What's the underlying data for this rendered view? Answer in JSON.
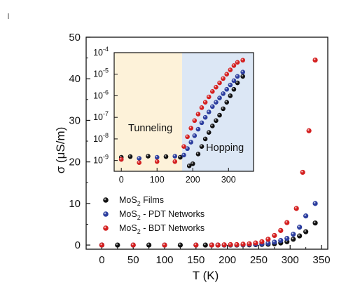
{
  "chart_data": [
    {
      "type": "scatter",
      "xlabel": "T (K)",
      "ylabel": "σ (μS/m)",
      "xlim": [
        -25,
        360
      ],
      "ylim": [
        -1,
        50
      ],
      "xticks": [
        0,
        50,
        100,
        150,
        200,
        250,
        300,
        350
      ],
      "yticks": [
        0,
        10,
        20,
        30,
        40,
        50
      ],
      "legend_position": "lower-left",
      "series": [
        {
          "name": "MoS2 Films",
          "name_base": "MoS",
          "name_sub": "2",
          "name_rest": " Films",
          "color": "#111111",
          "x": [
            0,
            25,
            75,
            125,
            165,
            175,
            185,
            195,
            205,
            215,
            225,
            235,
            245,
            255,
            265,
            275,
            285,
            295,
            305,
            315,
            325,
            340
          ],
          "y": [
            0,
            0,
            0,
            0,
            0,
            0,
            0,
            0,
            0,
            0,
            0.05,
            0.05,
            0.1,
            0.15,
            0.2,
            0.3,
            0.5,
            0.8,
            1.4,
            2.2,
            3.2,
            5.3
          ]
        },
        {
          "name": "MoS2 - PDT Networks",
          "name_base": "MoS",
          "name_sub": "2",
          "name_rest": " - PDT Networks",
          "color": "#2b3d9e",
          "x": [
            0,
            50,
            100,
            150,
            175,
            185,
            195,
            205,
            215,
            225,
            235,
            245,
            255,
            265,
            275,
            285,
            295,
            305,
            315,
            325,
            340
          ],
          "y": [
            0,
            0,
            0,
            0,
            0,
            0,
            0,
            0.05,
            0.05,
            0.1,
            0.15,
            0.2,
            0.3,
            0.45,
            0.7,
            1.1,
            1.6,
            2.6,
            4.3,
            7.0,
            10.0
          ]
        },
        {
          "name": "MoS2 - BDT Networks",
          "name_base": "MoS",
          "name_sub": "2",
          "name_rest": " - BDT Networks",
          "color": "#d41f1f",
          "x": [
            0,
            50,
            100,
            150,
            175,
            185,
            195,
            205,
            215,
            225,
            235,
            245,
            255,
            265,
            275,
            285,
            295,
            310,
            320,
            330,
            340
          ],
          "y": [
            0,
            0,
            0,
            0,
            0,
            0,
            0.05,
            0.1,
            0.1,
            0.2,
            0.3,
            0.5,
            0.8,
            1.4,
            2.3,
            3.5,
            5.4,
            8.8,
            17.5,
            27.5,
            44.5
          ]
        }
      ]
    },
    {
      "type": "scatter",
      "role": "inset",
      "log_y": true,
      "xlim": [
        -20,
        370
      ],
      "ylim_exponent": [
        -9.5,
        -4
      ],
      "xticks": [
        0,
        100,
        200,
        300
      ],
      "ytick_exponents": [
        -9,
        -8,
        -7,
        -6,
        -5,
        -4
      ],
      "ytick_base": "10",
      "regions": [
        {
          "label": "Tunneling",
          "x_range": [
            -20,
            170
          ],
          "color": "#fdf2d9"
        },
        {
          "label": "Hopping",
          "x_range": [
            170,
            370
          ],
          "color": "#dce7f5"
        }
      ],
      "series": [
        {
          "name": "MoS2 Films",
          "color": "#111111",
          "x": [
            0,
            25,
            75,
            125,
            165,
            190,
            200,
            215,
            225,
            235,
            245,
            255,
            265,
            275,
            285,
            295,
            305,
            315,
            325,
            340
          ],
          "log10_y": [
            -8.85,
            -8.82,
            -8.8,
            -8.82,
            -8.85,
            -9.25,
            -9.15,
            -8.7,
            -8.35,
            -8.0,
            -7.7,
            -7.4,
            -7.15,
            -6.9,
            -6.6,
            -6.3,
            -6.0,
            -5.7,
            -5.4,
            -5.1
          ]
        },
        {
          "name": "MoS2 - PDT Networks",
          "color": "#2b3d9e",
          "x": [
            0,
            50,
            100,
            150,
            175,
            185,
            195,
            205,
            215,
            225,
            235,
            245,
            255,
            265,
            275,
            285,
            295,
            305,
            315,
            325,
            340
          ],
          "log10_y": [
            -8.95,
            -8.9,
            -8.85,
            -8.8,
            -8.75,
            -8.45,
            -8.15,
            -7.85,
            -7.55,
            -7.25,
            -7.0,
            -6.75,
            -6.5,
            -6.3,
            -6.1,
            -5.9,
            -5.7,
            -5.5,
            -5.3,
            -5.1,
            -4.9
          ]
        },
        {
          "name": "MoS2 - BDT Networks",
          "color": "#d41f1f",
          "x": [
            0,
            50,
            100,
            150,
            175,
            185,
            195,
            205,
            215,
            225,
            235,
            245,
            255,
            265,
            275,
            285,
            295,
            305,
            315,
            325,
            340
          ],
          "log10_y": [
            -8.95,
            -9.1,
            -9.05,
            -9.05,
            -8.35,
            -7.9,
            -7.5,
            -7.15,
            -6.85,
            -6.55,
            -6.3,
            -6.05,
            -5.8,
            -5.6,
            -5.4,
            -5.2,
            -5.0,
            -4.8,
            -4.6,
            -4.45,
            -4.35
          ]
        }
      ]
    }
  ]
}
